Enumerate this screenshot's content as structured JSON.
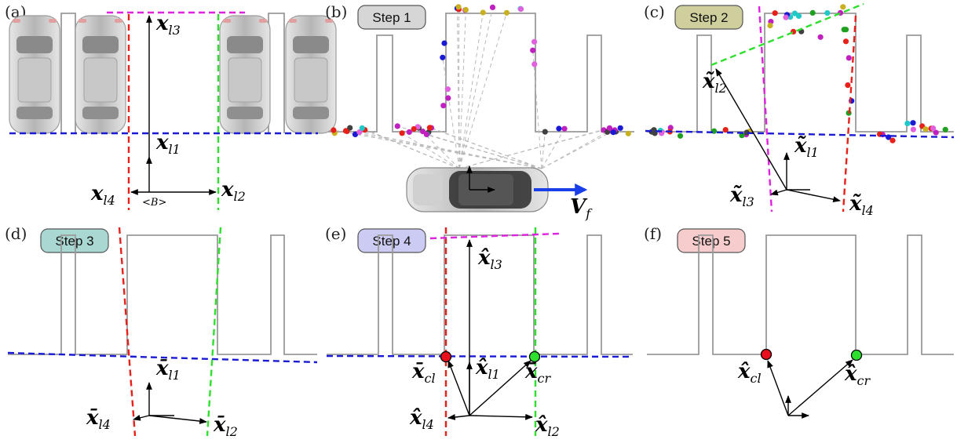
{
  "panels": {
    "a": {
      "label": "(a)"
    },
    "b": {
      "label": "(b)",
      "step": "Step 1"
    },
    "c": {
      "label": "(c)",
      "step": "Step 2"
    },
    "d": {
      "label": "(d)",
      "step": "Step 3"
    },
    "e": {
      "label": "(e)",
      "step": "Step 4"
    },
    "f": {
      "label": "(f)",
      "step": "Step 5"
    }
  },
  "colors": {
    "step1": "#d6d6d6",
    "step2": "#cfcf9e",
    "step3": "#a9d8d3",
    "step4": "#cbcbf3",
    "step5": "#f6cccc",
    "blue_line": "#1a1ad6",
    "red_line": "#e8201a",
    "green_line": "#2ee02e",
    "magenta_line": "#e020e0",
    "velocity": "#1a3ee8"
  },
  "symbols": {
    "x": "x",
    "xt": "x̃",
    "xb": "x̄",
    "xh": "x̂",
    "l1": "l1",
    "l2": "l2",
    "l3": "l3",
    "l4": "l4",
    "cl": "cl",
    "cr": "cr",
    "B": "<B>",
    "V": "V",
    "f": "f"
  }
}
